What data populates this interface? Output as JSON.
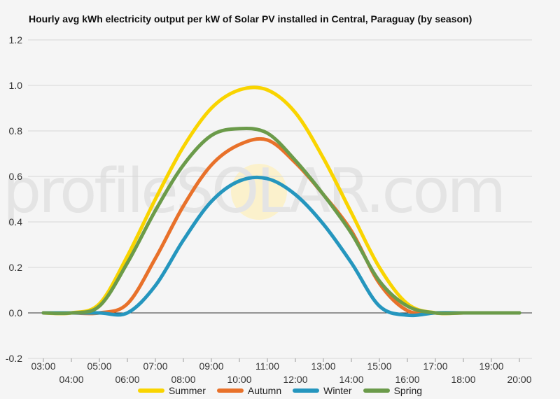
{
  "chart_data": {
    "type": "line",
    "title": "Hourly avg kWh electricity output per kW of Solar PV installed in Central, Paraguay (by season)",
    "xlabel": "",
    "ylabel": "",
    "ylim": [
      -0.2,
      1.2
    ],
    "y_ticks": [
      "-0.2",
      "0.0",
      "0.2",
      "0.4",
      "0.6",
      "0.8",
      "1.0",
      "1.2"
    ],
    "y_tick_values": [
      -0.2,
      0,
      0.2,
      0.4,
      0.6,
      0.8,
      1.0,
      1.2
    ],
    "x": [
      "03:00",
      "04:00",
      "05:00",
      "06:00",
      "07:00",
      "08:00",
      "09:00",
      "10:00",
      "11:00",
      "12:00",
      "13:00",
      "14:00",
      "15:00",
      "16:00",
      "17:00",
      "18:00",
      "19:00",
      "20:00"
    ],
    "grid": true,
    "legend_position": "bottom",
    "series": [
      {
        "name": "Summer",
        "color": "#f9d400",
        "values": [
          0,
          0,
          0.04,
          0.25,
          0.5,
          0.73,
          0.9,
          0.98,
          0.98,
          0.88,
          0.68,
          0.44,
          0.2,
          0.04,
          0,
          0,
          0,
          0
        ]
      },
      {
        "name": "Autumn",
        "color": "#e8712a",
        "values": [
          0,
          0,
          0,
          0.04,
          0.24,
          0.47,
          0.65,
          0.74,
          0.76,
          0.66,
          0.52,
          0.36,
          0.13,
          0.01,
          0,
          0,
          0,
          0
        ]
      },
      {
        "name": "Winter",
        "color": "#2596be",
        "values": [
          0,
          0,
          0,
          0,
          0.12,
          0.32,
          0.49,
          0.58,
          0.59,
          0.52,
          0.39,
          0.22,
          0.03,
          -0.01,
          0,
          0,
          0,
          0
        ]
      },
      {
        "name": "Spring",
        "color": "#6b9b4a",
        "values": [
          0,
          0,
          0.03,
          0.22,
          0.45,
          0.65,
          0.78,
          0.81,
          0.79,
          0.67,
          0.52,
          0.35,
          0.14,
          0.03,
          0,
          0,
          0,
          0
        ]
      }
    ]
  },
  "watermark": "profileSOLAR.com"
}
